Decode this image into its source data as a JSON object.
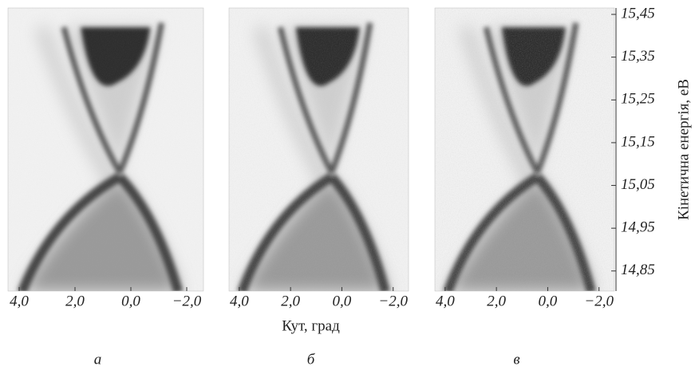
{
  "chart_data": [
    {
      "type": "image",
      "panel_label": "а",
      "xlim": [
        4.4,
        -2.6
      ],
      "xticks": [
        {
          "value": 4,
          "label": "4,0"
        },
        {
          "value": 2,
          "label": "2,0"
        },
        {
          "value": 0,
          "label": "0,0"
        },
        {
          "value": -2,
          "label": "−2,0"
        }
      ]
    },
    {
      "type": "image",
      "panel_label": "б",
      "xlim": [
        4.4,
        -2.6
      ],
      "xlabel": "Кут, град",
      "xticks": [
        {
          "value": 4,
          "label": "4,0"
        },
        {
          "value": 2,
          "label": "2,0"
        },
        {
          "value": 0,
          "label": "0,0"
        },
        {
          "value": -2,
          "label": "−2,0"
        }
      ]
    },
    {
      "type": "image",
      "panel_label": "в",
      "xlim": [
        4.4,
        -2.6
      ],
      "ylim": [
        14.803,
        15.465
      ],
      "ylabel": "Кінетична енергія, еВ",
      "xticks": [
        {
          "value": 4,
          "label": "4,0"
        },
        {
          "value": 2,
          "label": "2,0"
        },
        {
          "value": 0,
          "label": "0,0"
        },
        {
          "value": -2,
          "label": "−2,0"
        }
      ],
      "yticks": [
        {
          "value": 15.45,
          "label": "15,45"
        },
        {
          "value": 15.35,
          "label": "15,35"
        },
        {
          "value": 15.25,
          "label": "15,25"
        },
        {
          "value": 15.15,
          "label": "15,15"
        },
        {
          "value": 15.05,
          "label": "15,05"
        },
        {
          "value": 14.95,
          "label": "14,95"
        },
        {
          "value": 14.85,
          "label": "14,85"
        }
      ]
    }
  ]
}
